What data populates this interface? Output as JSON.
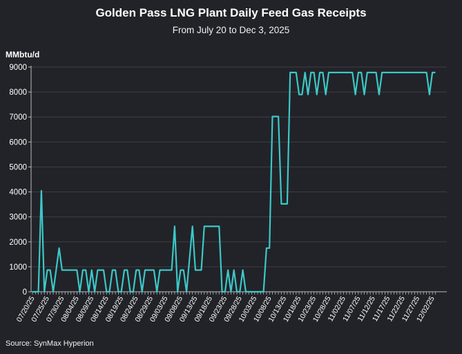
{
  "chart_data": {
    "type": "line",
    "title": "Golden Pass LNG Plant Daily Feed Gas Receipts",
    "subtitle": "From July 20 to Dec 3, 2025",
    "xlabel": "",
    "ylabel": "MMbtu/d",
    "source": "Source: SynMax Hyperion",
    "ylim": [
      0,
      9000
    ],
    "y_ticks": [
      0,
      1000,
      2000,
      3000,
      4000,
      5000,
      6000,
      7000,
      8000,
      9000
    ],
    "grid": "horizontal",
    "line_color": "#3cc8c8",
    "background_color": "#222328",
    "x_tick_labels": [
      "07/20/25",
      "07/25/25",
      "07/30/25",
      "08/04/25",
      "08/09/25",
      "08/14/25",
      "08/19/25",
      "08/24/25",
      "08/29/25",
      "09/03/25",
      "09/08/25",
      "09/13/25",
      "09/18/25",
      "09/23/25",
      "09/28/25",
      "10/03/25",
      "10/08/25",
      "10/13/25",
      "10/18/25",
      "10/23/25",
      "10/28/25",
      "11/02/25",
      "11/07/25",
      "11/12/25",
      "11/17/25",
      "11/22/25",
      "11/27/25",
      "12/02/25"
    ],
    "x": [
      "07/20/25",
      "07/21/25",
      "07/22/25",
      "07/23/25",
      "07/24/25",
      "07/25/25",
      "07/26/25",
      "07/27/25",
      "07/28/25",
      "07/29/25",
      "07/30/25",
      "07/31/25",
      "08/01/25",
      "08/02/25",
      "08/03/25",
      "08/04/25",
      "08/05/25",
      "08/06/25",
      "08/07/25",
      "08/08/25",
      "08/09/25",
      "08/10/25",
      "08/11/25",
      "08/12/25",
      "08/13/25",
      "08/14/25",
      "08/15/25",
      "08/16/25",
      "08/17/25",
      "08/18/25",
      "08/19/25",
      "08/20/25",
      "08/21/25",
      "08/22/25",
      "08/23/25",
      "08/24/25",
      "08/25/25",
      "08/26/25",
      "08/27/25",
      "08/28/25",
      "08/29/25",
      "08/30/25",
      "08/31/25",
      "09/01/25",
      "09/02/25",
      "09/03/25",
      "09/04/25",
      "09/05/25",
      "09/06/25",
      "09/07/25",
      "09/08/25",
      "09/09/25",
      "09/10/25",
      "09/11/25",
      "09/12/25",
      "09/13/25",
      "09/14/25",
      "09/15/25",
      "09/16/25",
      "09/17/25",
      "09/18/25",
      "09/19/25",
      "09/20/25",
      "09/21/25",
      "09/22/25",
      "09/23/25",
      "09/24/25",
      "09/25/25",
      "09/26/25",
      "09/27/25",
      "09/28/25",
      "09/29/25",
      "09/30/25",
      "10/01/25",
      "10/02/25",
      "10/03/25",
      "10/04/25",
      "10/05/25",
      "10/06/25",
      "10/07/25",
      "10/08/25",
      "10/09/25",
      "10/10/25",
      "10/11/25",
      "10/12/25",
      "10/13/25",
      "10/14/25",
      "10/15/25",
      "10/16/25",
      "10/17/25",
      "10/18/25",
      "10/19/25",
      "10/20/25",
      "10/21/25",
      "10/22/25",
      "10/23/25",
      "10/24/25",
      "10/25/25",
      "10/26/25",
      "10/27/25",
      "10/28/25",
      "10/29/25",
      "10/30/25",
      "10/31/25",
      "11/01/25",
      "11/02/25",
      "11/03/25",
      "11/04/25",
      "11/05/25",
      "11/06/25",
      "11/07/25",
      "11/08/25",
      "11/09/25",
      "11/10/25",
      "11/11/25",
      "11/12/25",
      "11/13/25",
      "11/14/25",
      "11/15/25",
      "11/16/25",
      "11/17/25",
      "11/18/25",
      "11/19/25",
      "11/20/25",
      "11/21/25",
      "11/22/25",
      "11/23/25",
      "11/24/25",
      "11/25/25",
      "11/26/25",
      "11/27/25",
      "11/28/25",
      "11/29/25",
      "11/30/25",
      "12/01/25",
      "12/02/25",
      "12/03/25"
    ],
    "series": [
      {
        "values": [
          0,
          0,
          0,
          4050,
          0,
          870,
          870,
          0,
          870,
          1750,
          870,
          870,
          870,
          870,
          870,
          870,
          0,
          870,
          870,
          0,
          870,
          0,
          870,
          870,
          870,
          0,
          0,
          870,
          870,
          0,
          0,
          870,
          870,
          0,
          0,
          870,
          870,
          0,
          870,
          870,
          870,
          870,
          0,
          870,
          870,
          870,
          870,
          870,
          2620,
          0,
          870,
          870,
          0,
          1310,
          2620,
          870,
          870,
          870,
          2620,
          2620,
          2620,
          2620,
          2620,
          2620,
          0,
          0,
          870,
          0,
          870,
          0,
          0,
          870,
          0,
          0,
          0,
          0,
          0,
          0,
          0,
          1750,
          1750,
          7020,
          7020,
          7020,
          3520,
          3520,
          3520,
          8780,
          8780,
          8780,
          7900,
          7900,
          8780,
          7900,
          8780,
          8780,
          7900,
          8780,
          8780,
          7900,
          8780,
          8780,
          8780,
          8780,
          8780,
          8780,
          8780,
          8780,
          8780,
          7900,
          8780,
          8780,
          7900,
          8780,
          8780,
          8780,
          8780,
          7900,
          8780,
          8780,
          8780,
          8780,
          8780,
          8780,
          8780,
          8780,
          8780,
          8780,
          8780,
          8780,
          8780,
          8780,
          8780,
          8780,
          7900,
          8780,
          8780
        ]
      }
    ]
  }
}
